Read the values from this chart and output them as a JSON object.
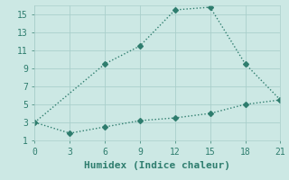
{
  "xlabel": "Humidex (Indice chaleur)",
  "line1_x": [
    0,
    6,
    9,
    12,
    15,
    18,
    21
  ],
  "line1_y": [
    3,
    9.5,
    11.5,
    15.5,
    15.8,
    9.5,
    5.5
  ],
  "line2_x": [
    0,
    3,
    6,
    9,
    12,
    15,
    18,
    21
  ],
  "line2_y": [
    3,
    1.8,
    2.5,
    3.2,
    3.5,
    4.0,
    5.0,
    5.5
  ],
  "line_color": "#2e7d6e",
  "bg_color": "#cce8e4",
  "grid_color": "#aacfcb",
  "xlim": [
    0,
    21
  ],
  "ylim": [
    1,
    16
  ],
  "xticks": [
    0,
    3,
    6,
    9,
    12,
    15,
    18,
    21
  ],
  "yticks": [
    1,
    3,
    5,
    7,
    9,
    11,
    13,
    15
  ],
  "markersize": 3,
  "linewidth": 1.0,
  "font_color": "#2e7d6e",
  "font_family": "monospace",
  "tick_fontsize": 7,
  "xlabel_fontsize": 8
}
